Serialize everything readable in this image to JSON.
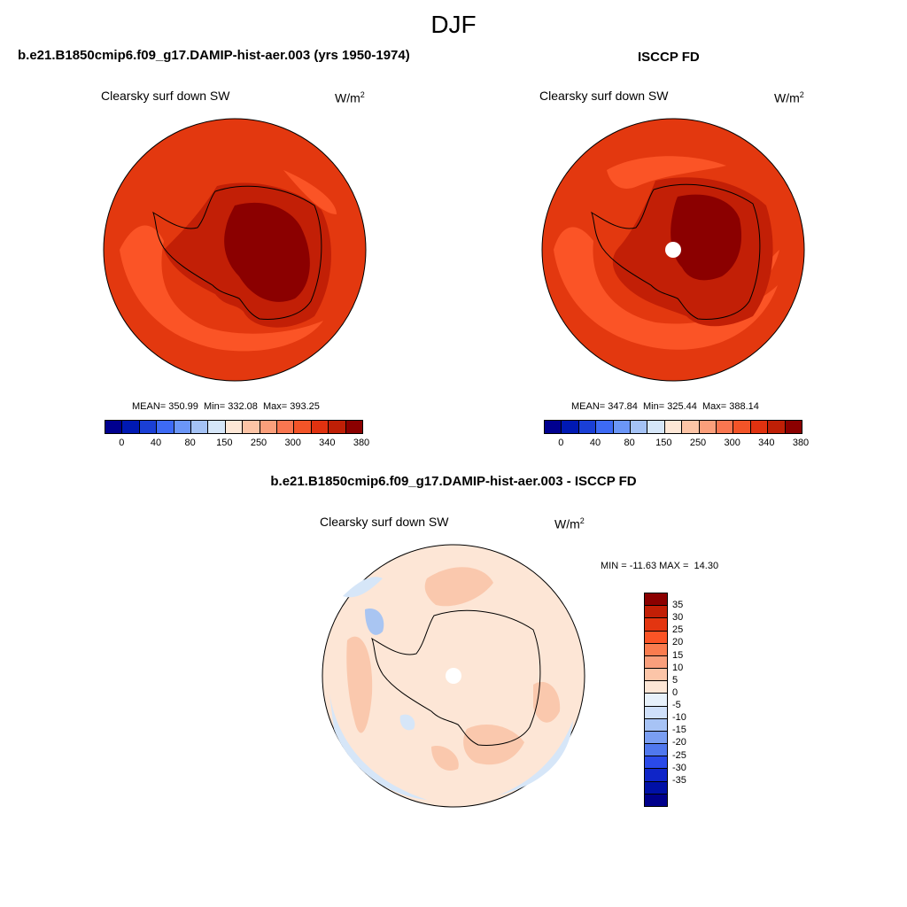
{
  "season": "DJF",
  "panels": {
    "model": {
      "title": "b.e21.B1850cmip6.f09_g17.DAMIP-hist-aer.003 (yrs 1950-1974)",
      "variable": "Clearsky surf down SW",
      "units": "W/m",
      "units_sup": "2",
      "stats": "MEAN= 350.99  Min= 332.08  Max= 393.25"
    },
    "obs": {
      "title": "ISCCP FD",
      "variable": "Clearsky surf down SW",
      "units": "W/m",
      "units_sup": "2",
      "stats": "MEAN= 347.84  Min= 325.44  Max= 388.14"
    },
    "diff": {
      "title": "b.e21.B1850cmip6.f09_g17.DAMIP-hist-aer.003 - ISCCP FD",
      "variable": "Clearsky surf down SW",
      "units": "W/m",
      "units_sup": "2",
      "stats": "MIN = -11.63 MAX =  14.30"
    }
  },
  "colorbar_top": {
    "colors": [
      "#00008f",
      "#0019b3",
      "#1a3fd6",
      "#3d6af5",
      "#6b96f7",
      "#a4c2f5",
      "#d5e6f8",
      "#fde7d6",
      "#fcc4a6",
      "#fb9f7b",
      "#f97650",
      "#f35428",
      "#e03210",
      "#bf1f06",
      "#8b0000"
    ],
    "labels": [
      "0",
      "40",
      "80",
      "150",
      "250",
      "300",
      "340",
      "380"
    ]
  },
  "colorbar_diff": {
    "colors": [
      "#8b0000",
      "#c21f06",
      "#e33510",
      "#fb5426",
      "#fa7c4f",
      "#f99f7c",
      "#fcc5a8",
      "#fde6d6",
      "#e7f1fb",
      "#cfe0fa",
      "#a7c3f5",
      "#7a9ef2",
      "#5078ee",
      "#2a4ae9",
      "#0f25c8",
      "#0010a6",
      "#00008b"
    ],
    "labels": [
      "35",
      "30",
      "25",
      "20",
      "15",
      "10",
      "5",
      "0",
      "-5",
      "-10",
      "-15",
      "-20",
      "-25",
      "-30",
      "-35"
    ]
  },
  "colors": {
    "model_outer": "#e3380f",
    "model_mid": "#fb5426",
    "model_ring": "#c21f06",
    "model_core": "#8b0000",
    "diff_base": "#fde6d6",
    "diff_warm": "#fac8ad",
    "diff_cool": "#d6e6f8",
    "diff_cooler": "#a9c5f2"
  }
}
